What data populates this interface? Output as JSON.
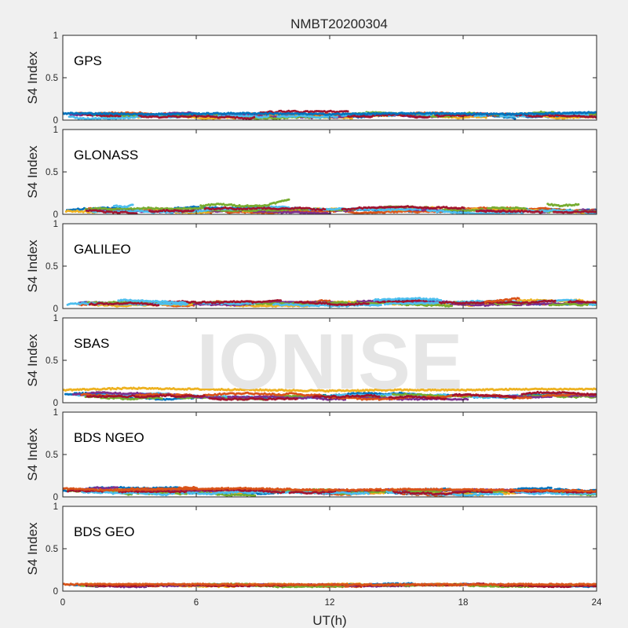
{
  "figure": {
    "title": "NMBT20200304",
    "watermark": "IONISE",
    "background_color": "#f0f0f0",
    "axes_background": "#ffffff",
    "axis_color": "#262626"
  },
  "chart_data": [
    {
      "type": "scatter",
      "panel_label": "GPS",
      "ylabel": "S4 Index",
      "ylim": [
        0,
        1
      ],
      "yticks": [
        0,
        0.5,
        1
      ],
      "ytick_labels": [
        "0",
        "0.5",
        "1"
      ],
      "xlim": [
        0,
        24
      ],
      "xticks": [
        0,
        6,
        12,
        18,
        24
      ],
      "base": 0.06,
      "spread": 0.045,
      "colors": [
        "#0072bd",
        "#d95319",
        "#edb120",
        "#7e2f8e",
        "#77ac30",
        "#4dbeee",
        "#a2142f"
      ],
      "series": [
        {
          "x": [
            0,
            4,
            8,
            12,
            16,
            20,
            24
          ],
          "values": [
            0.08,
            0.07,
            0.08,
            0.07,
            0.08,
            0.07,
            0.09
          ]
        }
      ]
    },
    {
      "type": "scatter",
      "panel_label": "GLONASS",
      "ylabel": "S4 Index",
      "ylim": [
        0,
        1
      ],
      "yticks": [
        0,
        0.5,
        1
      ],
      "ytick_labels": [
        "0",
        "0.5",
        "1"
      ],
      "xlim": [
        0,
        24
      ],
      "xticks": [
        0,
        6,
        12,
        18,
        24
      ],
      "base": 0.05,
      "spread": 0.04,
      "colors": [
        "#0072bd",
        "#d95319",
        "#edb120",
        "#7e2f8e",
        "#77ac30",
        "#4dbeee",
        "#a2142f"
      ],
      "series": [
        {
          "x": [
            6.2,
            7,
            8,
            9,
            9.8,
            10.2
          ],
          "values": [
            0.1,
            0.12,
            0.1,
            0.1,
            0.15,
            0.18
          ],
          "color": "#77ac30"
        },
        {
          "x": [
            2.3,
            2.8,
            3.2
          ],
          "values": [
            0.1,
            0.09,
            0.11
          ],
          "color": "#4dbeee"
        },
        {
          "x": [
            21.8,
            22.3,
            22.8,
            23.2
          ],
          "values": [
            0.12,
            0.1,
            0.11,
            0.12
          ],
          "color": "#77ac30"
        }
      ]
    },
    {
      "type": "scatter",
      "panel_label": "GALILEO",
      "ylabel": "S4 Index",
      "ylim": [
        0,
        1
      ],
      "yticks": [
        0,
        0.5,
        1
      ],
      "ytick_labels": [
        "0",
        "0.5",
        "1"
      ],
      "xlim": [
        0,
        24
      ],
      "xticks": [
        0,
        6,
        12,
        18,
        24
      ],
      "base": 0.065,
      "spread": 0.035,
      "colors": [
        "#0072bd",
        "#d95319",
        "#edb120",
        "#7e2f8e",
        "#77ac30",
        "#4dbeee",
        "#a2142f"
      ],
      "series": [
        {
          "x": [
            2.5,
            3.5,
            4.5,
            5.5
          ],
          "values": [
            0.1,
            0.09,
            0.08,
            0.07
          ],
          "color": "#4dbeee"
        },
        {
          "x": [
            14,
            15,
            16,
            17
          ],
          "values": [
            0.1,
            0.11,
            0.12,
            0.1
          ],
          "color": "#4dbeee"
        },
        {
          "x": [
            19,
            19.8,
            20.5
          ],
          "values": [
            0.08,
            0.1,
            0.12
          ],
          "color": "#d95319"
        }
      ]
    },
    {
      "type": "scatter",
      "panel_label": "SBAS",
      "ylabel": "S4 Index",
      "ylim": [
        0,
        1
      ],
      "yticks": [
        0,
        0.5,
        1
      ],
      "ytick_labels": [
        "0",
        "0.5",
        "1"
      ],
      "xlim": [
        0,
        24
      ],
      "xticks": [
        0,
        6,
        12,
        18,
        24
      ],
      "base": 0.08,
      "spread": 0.04,
      "colors": [
        "#0072bd",
        "#4dbeee",
        "#77ac30",
        "#7e2f8e",
        "#d95319",
        "#a2142f"
      ],
      "series": [
        {
          "x": [
            0,
            3,
            6,
            9,
            12,
            15,
            18,
            21,
            24
          ],
          "values": [
            0.15,
            0.17,
            0.16,
            0.15,
            0.14,
            0.15,
            0.15,
            0.16,
            0.16
          ],
          "color": "#edb120"
        }
      ]
    },
    {
      "type": "scatter",
      "panel_label": "BDS NGEO",
      "ylabel": "S4 Index",
      "ylim": [
        0,
        1
      ],
      "yticks": [
        0,
        0.5,
        1
      ],
      "ytick_labels": [
        "0",
        "0.5",
        "1"
      ],
      "xlim": [
        0,
        24
      ],
      "xticks": [
        0,
        6,
        12,
        18,
        24
      ],
      "base": 0.065,
      "spread": 0.045,
      "colors": [
        "#0072bd",
        "#d95319",
        "#edb120",
        "#7e2f8e",
        "#77ac30",
        "#4dbeee",
        "#a2142f"
      ],
      "series": [
        {
          "x": [
            0,
            2,
            5,
            8,
            12,
            16,
            20,
            24
          ],
          "values": [
            0.1,
            0.08,
            0.09,
            0.1,
            0.08,
            0.09,
            0.08,
            0.07
          ],
          "color": "#d95319"
        }
      ]
    },
    {
      "type": "scatter",
      "panel_label": "BDS GEO",
      "ylabel": "S4 Index",
      "ylim": [
        0,
        1
      ],
      "yticks": [
        0,
        0.5,
        1
      ],
      "ytick_labels": [
        "0",
        "0.5",
        "1"
      ],
      "xlim": [
        0,
        24
      ],
      "xticks": [
        0,
        6,
        12,
        18,
        24
      ],
      "xlabel": "UT(h)",
      "base": 0.07,
      "spread": 0.018,
      "colors": [
        "#edb120",
        "#d95319",
        "#0072bd",
        "#7e2f8e",
        "#77ac30",
        "#a2142f"
      ],
      "series": [
        {
          "x": [
            0,
            6,
            12,
            18,
            24
          ],
          "values": [
            0.08,
            0.08,
            0.075,
            0.078,
            0.08
          ],
          "color": "#d95319"
        }
      ]
    }
  ]
}
